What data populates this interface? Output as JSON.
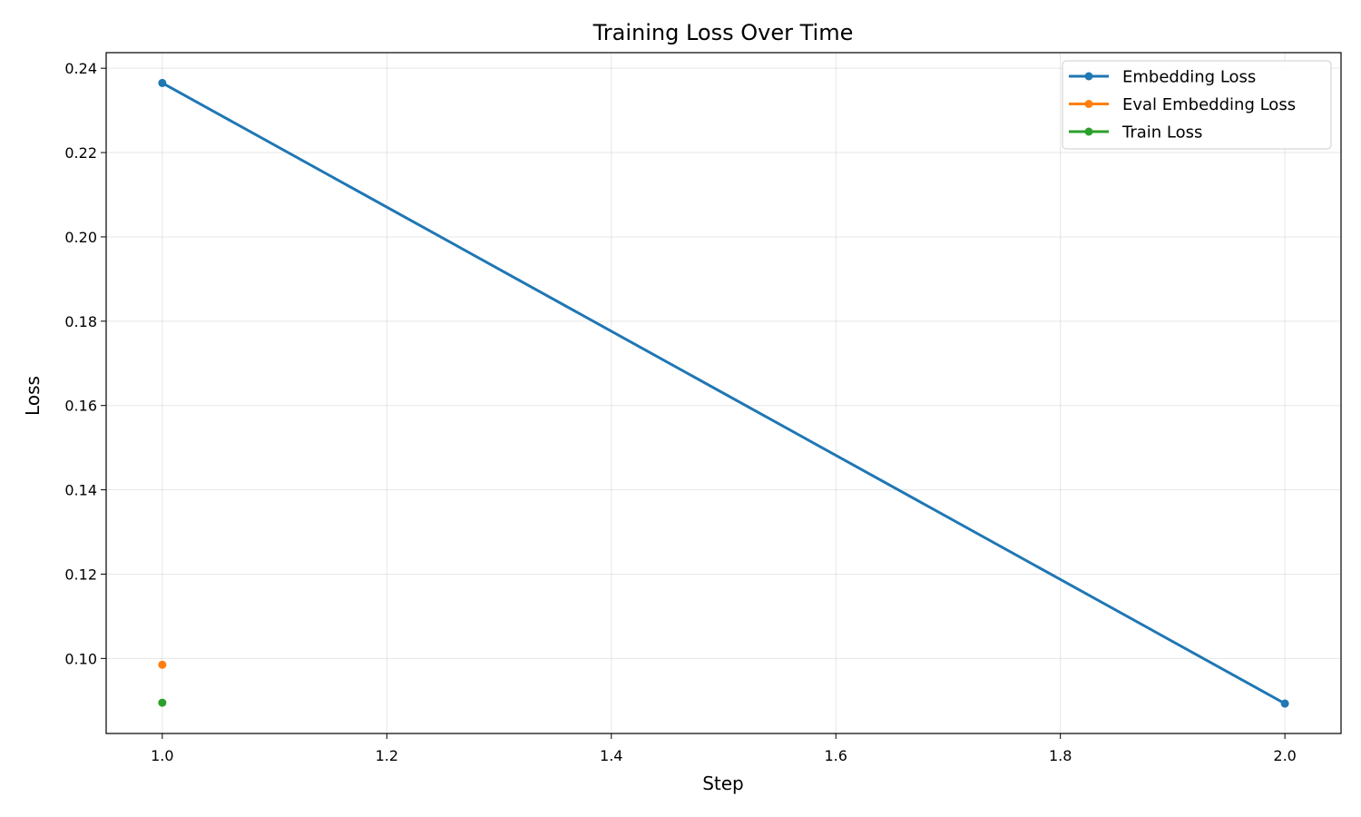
{
  "chart_data": {
    "type": "line",
    "title": "Training Loss Over Time",
    "xlabel": "Step",
    "ylabel": "Loss",
    "xlim": [
      0.95,
      2.05
    ],
    "ylim": [
      0.0822,
      0.2437
    ],
    "x_ticks": [
      1.0,
      1.2,
      1.4,
      1.6,
      1.8,
      2.0
    ],
    "y_ticks": [
      0.1,
      0.12,
      0.14,
      0.16,
      0.18,
      0.2,
      0.22,
      0.24
    ],
    "x_tick_labels": [
      "1.0",
      "1.2",
      "1.4",
      "1.6",
      "1.8",
      "2.0"
    ],
    "y_tick_labels": [
      "0.10",
      "0.12",
      "0.14",
      "0.16",
      "0.18",
      "0.20",
      "0.22",
      "0.24"
    ],
    "grid": true,
    "legend_position": "top-right",
    "series": [
      {
        "name": "Embedding Loss",
        "color": "#1f77b4",
        "points": [
          [
            1.0,
            0.2365
          ],
          [
            2.0,
            0.0893
          ]
        ]
      },
      {
        "name": "Eval Embedding Loss",
        "color": "#ff7f0e",
        "points": [
          [
            1.0,
            0.0985
          ]
        ]
      },
      {
        "name": "Train Loss",
        "color": "#2ca02c",
        "points": [
          [
            1.0,
            0.0895
          ]
        ]
      }
    ]
  }
}
